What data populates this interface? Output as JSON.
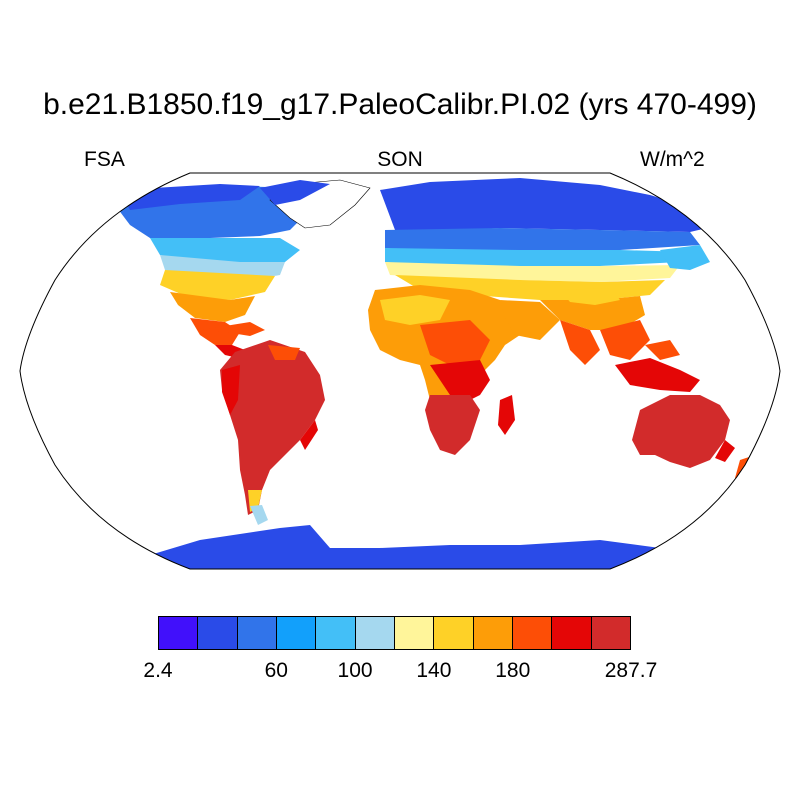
{
  "title": "b.e21.B1850.f19_g17.PaleoCalibr.PI.02 (yrs 470-499)",
  "subtitle_left": "FSA",
  "subtitle_center": "SON",
  "subtitle_right": "W/m^2",
  "colorbar": {
    "colors": [
      "#4110fb",
      "#2a4be8",
      "#3174ea",
      "#12a0fb",
      "#43bff7",
      "#a5d8ef",
      "#fff59a",
      "#fed127",
      "#fd9d08",
      "#fd4e06",
      "#e40606",
      "#d22b2b"
    ],
    "labels": [
      "2.4",
      "60",
      "100",
      "140",
      "180",
      "287.7"
    ]
  },
  "map": {
    "projection": "Robinson",
    "ocean_color": "#ffffff",
    "field": "Absorbed solar radiation over land"
  }
}
